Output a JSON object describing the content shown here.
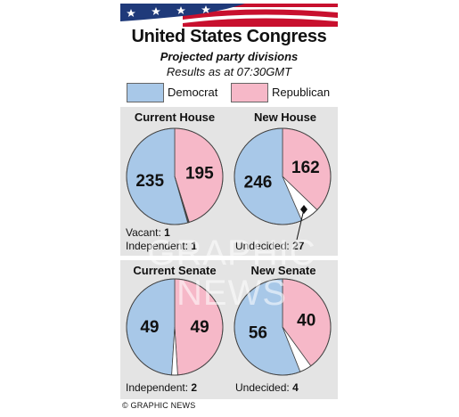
{
  "header": {
    "title": "United States Congress",
    "subtitle": "Projected party divisions",
    "results_time": "Results as at 07:30GMT"
  },
  "legend": [
    {
      "label": "Democrat",
      "color": "#a8c8e8"
    },
    {
      "label": "Republican",
      "color": "#f6b8c8"
    }
  ],
  "colors": {
    "democrat": "#a8c8e8",
    "republican": "#f6b8c8",
    "other": "#ffffff",
    "outline": "#444444"
  },
  "chart_data": [
    {
      "type": "pie",
      "title": "Current House",
      "slices": [
        {
          "name": "Democrat",
          "value": 235,
          "label": "235"
        },
        {
          "name": "Republican",
          "value": 195,
          "label": "195"
        },
        {
          "name": "Vacant",
          "value": 1,
          "label": ""
        },
        {
          "name": "Independent",
          "value": 1,
          "label": ""
        }
      ],
      "notes": [
        {
          "label": "Vacant:",
          "value": "1"
        },
        {
          "label": "Independent:",
          "value": "1"
        }
      ]
    },
    {
      "type": "pie",
      "title": "New House",
      "slices": [
        {
          "name": "Democrat",
          "value": 246,
          "label": "246"
        },
        {
          "name": "Republican",
          "value": 162,
          "label": "162"
        },
        {
          "name": "Undecided",
          "value": 27,
          "label": ""
        }
      ],
      "notes": [
        {
          "label": "Undecided:",
          "value": "27"
        }
      ]
    },
    {
      "type": "pie",
      "title": "Current Senate",
      "slices": [
        {
          "name": "Democrat",
          "value": 49,
          "label": "49"
        },
        {
          "name": "Republican",
          "value": 49,
          "label": "49"
        },
        {
          "name": "Independent",
          "value": 2,
          "label": ""
        }
      ],
      "notes": [
        {
          "label": "Independent:",
          "value": "2"
        }
      ]
    },
    {
      "type": "pie",
      "title": "New Senate",
      "slices": [
        {
          "name": "Democrat",
          "value": 56,
          "label": "56"
        },
        {
          "name": "Republican",
          "value": 40,
          "label": "40"
        },
        {
          "name": "Undecided",
          "value": 4,
          "label": ""
        }
      ],
      "notes": [
        {
          "label": "Undecided:",
          "value": "4"
        }
      ]
    }
  ],
  "credit": "© GRAPHIC NEWS",
  "watermark": "GRAPHIC NEWS"
}
